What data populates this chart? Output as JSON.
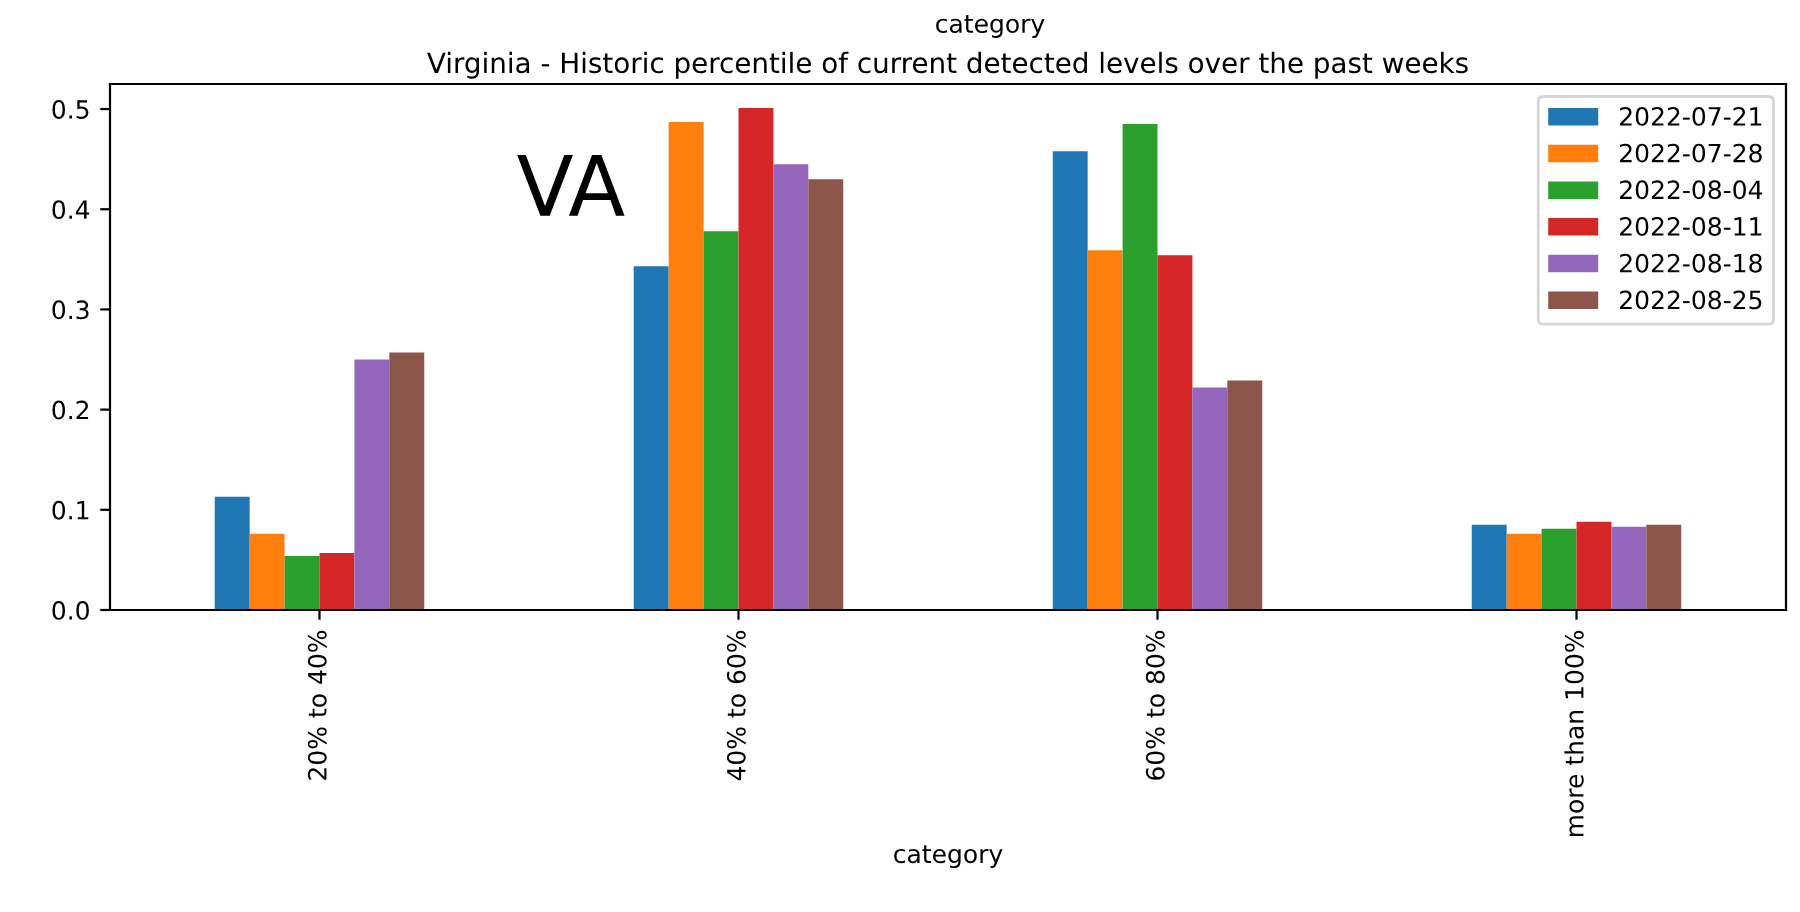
{
  "chart_data": {
    "type": "bar",
    "title": "Virginia - Historic percentile of current detected levels over the past weeks",
    "xlabel": "category",
    "categories": [
      "20% to 40%",
      "40% to 60%",
      "60% to 80%",
      "more than 100%"
    ],
    "series": [
      {
        "name": "2022-07-21",
        "color": "#1f77b4",
        "values": [
          0.113,
          0.343,
          0.458,
          0.085
        ]
      },
      {
        "name": "2022-07-28",
        "color": "#ff7f0e",
        "values": [
          0.076,
          0.487,
          0.359,
          0.076
        ]
      },
      {
        "name": "2022-08-04",
        "color": "#2ca02c",
        "values": [
          0.054,
          0.378,
          0.485,
          0.081
        ]
      },
      {
        "name": "2022-08-11",
        "color": "#d62728",
        "values": [
          0.057,
          0.501,
          0.354,
          0.088
        ]
      },
      {
        "name": "2022-08-18",
        "color": "#9467bd",
        "values": [
          0.25,
          0.445,
          0.222,
          0.083
        ]
      },
      {
        "name": "2022-08-25",
        "color": "#8c564b",
        "values": [
          0.257,
          0.43,
          0.229,
          0.085
        ]
      }
    ],
    "ylim": [
      0,
      0.525
    ],
    "yticks": [
      {
        "value": 0,
        "label": "0.0"
      },
      {
        "value": 0.1,
        "label": "0.1"
      },
      {
        "value": 0.2,
        "label": "0.2"
      },
      {
        "value": 0.3,
        "label": "0.3"
      },
      {
        "value": 0.4,
        "label": "0.4"
      },
      {
        "value": 0.5,
        "label": "0.5"
      }
    ],
    "annotations": [
      "VA",
      "category"
    ],
    "legend": "top right",
    "grid": false
  }
}
